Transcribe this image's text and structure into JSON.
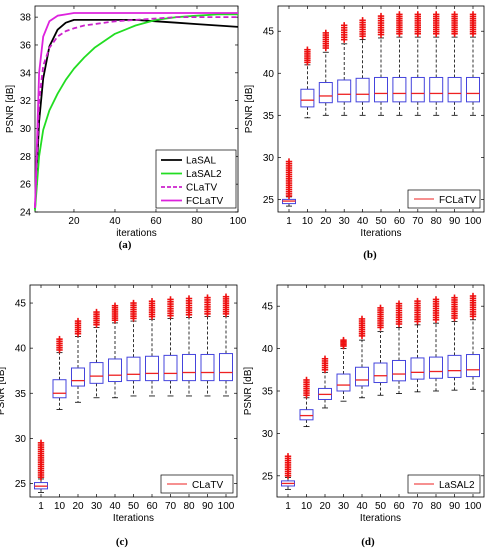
{
  "chart_data": [
    {
      "panel": "(a)",
      "type": "line",
      "xlabel": "iterations",
      "ylabel": "PSNR [dB]",
      "xlim": [
        1,
        100
      ],
      "ylim": [
        24,
        38.8
      ],
      "xticks": [
        20,
        40,
        60,
        80,
        100
      ],
      "yticks": [
        24,
        26,
        28,
        30,
        32,
        34,
        36,
        38
      ],
      "grid": false,
      "legend_position": "bottom-right",
      "series": [
        {
          "name": "LaSAL",
          "color": "#000000",
          "dash": "solid",
          "x": [
            1,
            3,
            5,
            8,
            12,
            16,
            20,
            25,
            30,
            40,
            50,
            60,
            70,
            80,
            90,
            100
          ],
          "y": [
            24.2,
            30.5,
            33.6,
            35.9,
            37.1,
            37.6,
            37.8,
            37.8,
            37.8,
            37.8,
            37.8,
            37.7,
            37.6,
            37.5,
            37.4,
            37.3
          ]
        },
        {
          "name": "LaSAL2",
          "color": "#22dd22",
          "dash": "solid",
          "x": [
            1,
            3,
            5,
            8,
            12,
            16,
            20,
            25,
            30,
            40,
            50,
            60,
            70,
            80,
            90,
            100
          ],
          "y": [
            24.1,
            28.0,
            29.9,
            31.3,
            32.5,
            33.5,
            34.3,
            35.1,
            35.8,
            36.8,
            37.4,
            37.8,
            38.0,
            38.1,
            38.2,
            38.2
          ]
        },
        {
          "name": "CLaTV",
          "color": "#cc22cc",
          "dash": "dashed",
          "x": [
            1,
            3,
            5,
            8,
            12,
            16,
            20,
            25,
            30,
            40,
            50,
            60,
            70,
            80,
            90,
            100
          ],
          "y": [
            24.3,
            32.0,
            34.5,
            35.8,
            36.6,
            37.0,
            37.2,
            37.4,
            37.5,
            37.7,
            37.8,
            37.9,
            38.0,
            38.0,
            38.0,
            38.0
          ]
        },
        {
          "name": "FCLaTV",
          "color": "#dd22dd",
          "dash": "solid",
          "x": [
            1,
            3,
            5,
            8,
            12,
            16,
            20,
            25,
            30,
            40,
            50,
            60,
            70,
            80,
            90,
            100
          ],
          "y": [
            24.3,
            34.0,
            36.6,
            37.7,
            38.1,
            38.2,
            38.3,
            38.3,
            38.3,
            38.3,
            38.3,
            38.3,
            38.3,
            38.3,
            38.3,
            38.3
          ]
        }
      ]
    },
    {
      "panel": "(b)",
      "type": "box",
      "xlabel": "Iterations",
      "ylabel": "PSNR [dB]",
      "ylim": [
        23.5,
        48
      ],
      "yticks": [
        25,
        30,
        35,
        40,
        45
      ],
      "categories": [
        "1",
        "10",
        "20",
        "30",
        "40",
        "50",
        "60",
        "70",
        "80",
        "90",
        "100"
      ],
      "legend": "FCLaTV",
      "legend_position": "bottom-right",
      "boxes": [
        {
          "low": 24.2,
          "q1": 24.5,
          "median": 24.8,
          "q3": 25.0,
          "high": 25.3,
          "out_low": 25.4,
          "out_high": 29.5
        },
        {
          "low": 34.7,
          "q1": 36.0,
          "median": 36.8,
          "q3": 38.1,
          "high": 41.0,
          "out_low": 41.3,
          "out_high": 42.8
        },
        {
          "low": 35.0,
          "q1": 36.5,
          "median": 37.3,
          "q3": 38.9,
          "high": 42.5,
          "out_low": 43.0,
          "out_high": 44.8
        },
        {
          "low": 35.0,
          "q1": 36.6,
          "median": 37.5,
          "q3": 39.2,
          "high": 43.5,
          "out_low": 44.0,
          "out_high": 45.7
        },
        {
          "low": 35.0,
          "q1": 36.6,
          "median": 37.5,
          "q3": 39.4,
          "high": 44.0,
          "out_low": 44.4,
          "out_high": 46.3
        },
        {
          "low": 35.0,
          "q1": 36.6,
          "median": 37.6,
          "q3": 39.5,
          "high": 44.2,
          "out_low": 44.6,
          "out_high": 46.8
        },
        {
          "low": 35.0,
          "q1": 36.6,
          "median": 37.6,
          "q3": 39.5,
          "high": 44.3,
          "out_low": 44.7,
          "out_high": 47.0
        },
        {
          "low": 35.0,
          "q1": 36.6,
          "median": 37.6,
          "q3": 39.5,
          "high": 44.3,
          "out_low": 44.7,
          "out_high": 47.0
        },
        {
          "low": 35.0,
          "q1": 36.6,
          "median": 37.6,
          "q3": 39.5,
          "high": 44.3,
          "out_low": 44.7,
          "out_high": 47.0
        },
        {
          "low": 35.0,
          "q1": 36.6,
          "median": 37.6,
          "q3": 39.5,
          "high": 44.3,
          "out_low": 44.7,
          "out_high": 47.0
        },
        {
          "low": 35.0,
          "q1": 36.6,
          "median": 37.6,
          "q3": 39.5,
          "high": 44.3,
          "out_low": 44.7,
          "out_high": 47.0
        }
      ]
    },
    {
      "panel": "(c)",
      "type": "box",
      "xlabel": "Iterations",
      "ylabel": "PSNR [dB]",
      "ylim": [
        23.5,
        47
      ],
      "yticks": [
        25,
        30,
        35,
        40,
        45
      ],
      "categories": [
        "1",
        "10",
        "20",
        "30",
        "40",
        "50",
        "60",
        "70",
        "80",
        "90",
        "100"
      ],
      "legend": "CLaTV",
      "legend_position": "bottom-right",
      "boxes": [
        {
          "low": 24.0,
          "q1": 24.4,
          "median": 24.7,
          "q3": 25.1,
          "high": 25.5,
          "out_low": 25.7,
          "out_high": 29.5
        },
        {
          "low": 33.2,
          "q1": 34.5,
          "median": 35.0,
          "q3": 36.5,
          "high": 39.5,
          "out_low": 39.8,
          "out_high": 41.0
        },
        {
          "low": 34.0,
          "q1": 35.8,
          "median": 36.4,
          "q3": 37.8,
          "high": 41.3,
          "out_low": 41.6,
          "out_high": 43.0
        },
        {
          "low": 34.5,
          "q1": 36.1,
          "median": 36.9,
          "q3": 38.4,
          "high": 42.3,
          "out_low": 42.6,
          "out_high": 44.0
        },
        {
          "low": 34.5,
          "q1": 36.3,
          "median": 37.0,
          "q3": 38.8,
          "high": 42.8,
          "out_low": 43.1,
          "out_high": 44.7
        },
        {
          "low": 34.7,
          "q1": 36.4,
          "median": 37.1,
          "q3": 39.0,
          "high": 43.0,
          "out_low": 43.3,
          "out_high": 45.0
        },
        {
          "low": 34.7,
          "q1": 36.4,
          "median": 37.2,
          "q3": 39.1,
          "high": 43.2,
          "out_low": 43.5,
          "out_high": 45.2
        },
        {
          "low": 34.7,
          "q1": 36.4,
          "median": 37.2,
          "q3": 39.2,
          "high": 43.3,
          "out_low": 43.6,
          "out_high": 45.4
        },
        {
          "low": 34.7,
          "q1": 36.4,
          "median": 37.3,
          "q3": 39.3,
          "high": 43.4,
          "out_low": 43.7,
          "out_high": 45.5
        },
        {
          "low": 34.7,
          "q1": 36.4,
          "median": 37.3,
          "q3": 39.3,
          "high": 43.5,
          "out_low": 43.8,
          "out_high": 45.6
        },
        {
          "low": 34.7,
          "q1": 36.4,
          "median": 37.3,
          "q3": 39.4,
          "high": 43.5,
          "out_low": 43.8,
          "out_high": 45.7
        }
      ]
    },
    {
      "panel": "(d)",
      "type": "box",
      "xlabel": "Iterations",
      "ylabel": "PSNR [dB]",
      "ylim": [
        22.5,
        47.5
      ],
      "yticks": [
        25,
        30,
        35,
        40,
        45
      ],
      "categories": [
        "1",
        "10",
        "20",
        "30",
        "40",
        "50",
        "60",
        "70",
        "80",
        "90",
        "100"
      ],
      "legend": "LaSAL2",
      "legend_position": "bottom-right",
      "boxes": [
        {
          "low": 23.4,
          "q1": 23.8,
          "median": 24.1,
          "q3": 24.4,
          "high": 24.8,
          "out_low": 25.0,
          "out_high": 27.3
        },
        {
          "low": 30.8,
          "q1": 31.6,
          "median": 32.1,
          "q3": 32.8,
          "high": 34.2,
          "out_low": 34.5,
          "out_high": 36.3
        },
        {
          "low": 33.0,
          "q1": 34.0,
          "median": 34.6,
          "q3": 35.3,
          "high": 37.2,
          "out_low": 37.5,
          "out_high": 38.8
        },
        {
          "low": 33.8,
          "q1": 35.0,
          "median": 35.7,
          "q3": 37.0,
          "high": 40.0,
          "out_low": 40.3,
          "out_high": 41.0
        },
        {
          "low": 34.2,
          "q1": 35.6,
          "median": 36.3,
          "q3": 37.8,
          "high": 41.0,
          "out_low": 41.5,
          "out_high": 43.5
        },
        {
          "low": 34.5,
          "q1": 36.0,
          "median": 36.8,
          "q3": 38.3,
          "high": 42.0,
          "out_low": 42.5,
          "out_high": 44.8
        },
        {
          "low": 34.7,
          "q1": 36.2,
          "median": 37.0,
          "q3": 38.6,
          "high": 42.5,
          "out_low": 42.9,
          "out_high": 45.3
        },
        {
          "low": 34.9,
          "q1": 36.4,
          "median": 37.2,
          "q3": 38.9,
          "high": 42.8,
          "out_low": 43.2,
          "out_high": 45.6
        },
        {
          "low": 35.0,
          "q1": 36.5,
          "median": 37.3,
          "q3": 39.0,
          "high": 43.0,
          "out_low": 43.4,
          "out_high": 45.8
        },
        {
          "low": 35.1,
          "q1": 36.6,
          "median": 37.4,
          "q3": 39.2,
          "high": 43.2,
          "out_low": 43.6,
          "out_high": 46.0
        },
        {
          "low": 35.2,
          "q1": 36.7,
          "median": 37.5,
          "q3": 39.3,
          "high": 43.4,
          "out_low": 43.8,
          "out_high": 46.2
        }
      ]
    }
  ],
  "colors": {
    "box": "#4444dd",
    "median": "#ee2222",
    "whisker": "#000000",
    "outlier": "#ee1111"
  }
}
